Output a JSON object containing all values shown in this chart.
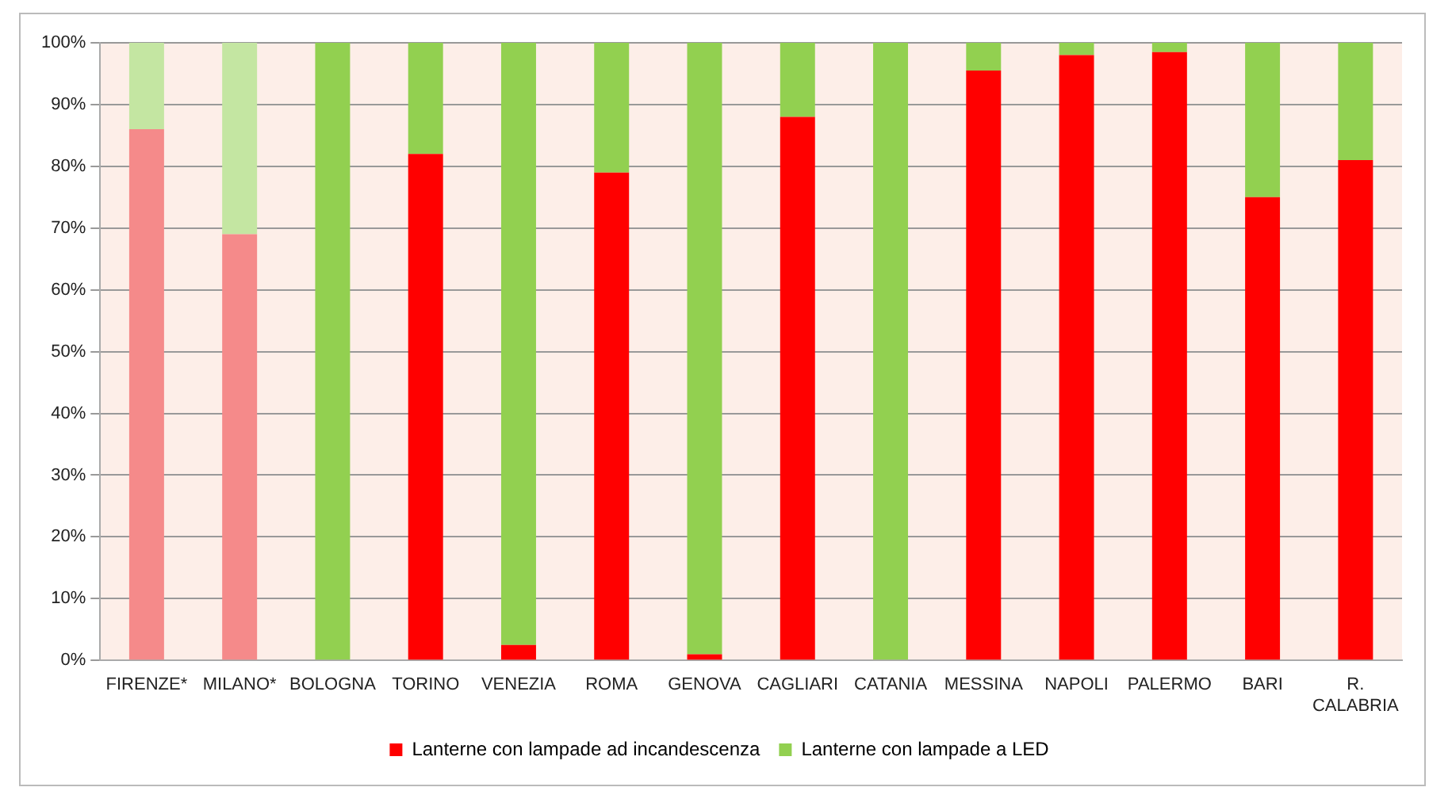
{
  "chart_data": {
    "type": "bar",
    "stacked": true,
    "categories": [
      "FIRENZE*",
      "MILANO*",
      "BOLOGNA",
      "TORINO",
      "VENEZIA",
      "ROMA",
      "GENOVA",
      "CAGLIARI",
      "CATANIA",
      "MESSINA",
      "NAPOLI",
      "PALERMO",
      "BARI",
      "R. CALABRIA"
    ],
    "series": [
      {
        "name": "Lanterne con lampade ad incandescenza",
        "color": "#ff0000",
        "colors": [
          "#f58a8a",
          "#f58a8a",
          "#ff0000",
          "#ff0000",
          "#ff0000",
          "#ff0000",
          "#ff0000",
          "#ff0000",
          "#ff0000",
          "#ff0000",
          "#ff0000",
          "#ff0000",
          "#ff0000",
          "#ff0000"
        ],
        "values": [
          86,
          69,
          0,
          82,
          2.5,
          79,
          1,
          88,
          0,
          95.5,
          98,
          98.5,
          75,
          81
        ]
      },
      {
        "name": "Lanterne con lampade a LED",
        "color": "#92d050",
        "colors": [
          "#c4e6a2",
          "#c4e6a2",
          "#92d050",
          "#92d050",
          "#92d050",
          "#92d050",
          "#92d050",
          "#92d050",
          "#92d050",
          "#92d050",
          "#92d050",
          "#92d050",
          "#92d050",
          "#92d050"
        ],
        "values": [
          14,
          31,
          100,
          18,
          97.5,
          21,
          99,
          12,
          100,
          4.5,
          2,
          1.5,
          25,
          19
        ]
      }
    ],
    "ylim": [
      0,
      100
    ],
    "yticks": [
      {
        "value": 0,
        "label": "0%"
      },
      {
        "value": 10,
        "label": "10%"
      },
      {
        "value": 20,
        "label": "20%"
      },
      {
        "value": 30,
        "label": "30%"
      },
      {
        "value": 40,
        "label": "40%"
      },
      {
        "value": 50,
        "label": "50%"
      },
      {
        "value": 60,
        "label": "60%"
      },
      {
        "value": 70,
        "label": "70%"
      },
      {
        "value": 80,
        "label": "80%"
      },
      {
        "value": 90,
        "label": "90%"
      },
      {
        "value": 100,
        "label": "100%"
      }
    ],
    "grid": "y",
    "legend": "bottom"
  }
}
